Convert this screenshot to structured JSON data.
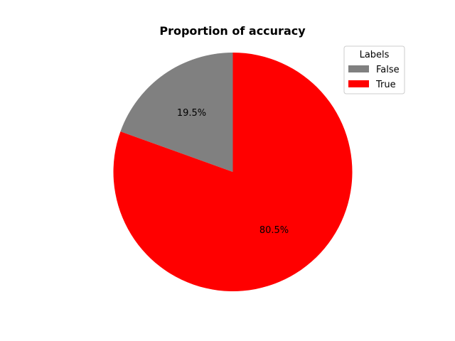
{
  "chart_data": {
    "type": "pie",
    "title": "Proportion of accuracy",
    "slices": [
      {
        "label": "False",
        "value": 19.5,
        "pct_label": "19.5%",
        "color": "#808080"
      },
      {
        "label": "True",
        "value": 80.5,
        "pct_label": "80.5%",
        "color": "#ff0000"
      }
    ],
    "start_angle_deg": 90,
    "direction": "counterclockwise",
    "legend": {
      "title": "Labels",
      "placement": "top-right"
    }
  }
}
